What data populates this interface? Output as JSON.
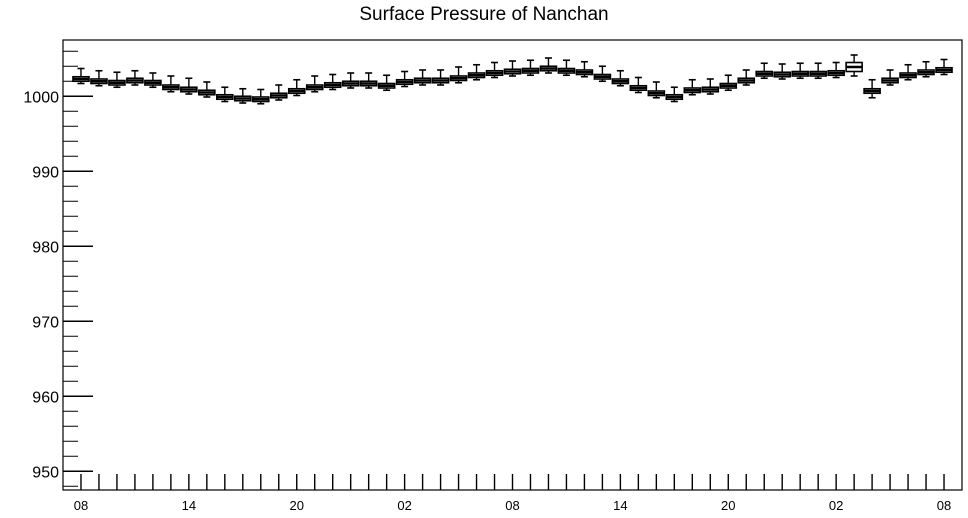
{
  "chart_data": {
    "type": "box",
    "title": "Surface Pressure of Nanchan",
    "xlabel": "",
    "ylabel": "",
    "ylim": [
      947.5,
      1007.5
    ],
    "y_ticks": [
      950,
      960,
      970,
      980,
      990,
      1000
    ],
    "x_tick_labels": [
      "08",
      "14",
      "20",
      "02",
      "08",
      "14",
      "20",
      "02",
      "08"
    ],
    "x_tick_label_hours": [
      8,
      14,
      20,
      26,
      32,
      38,
      44,
      50,
      56
    ],
    "x_range_hours": [
      7,
      57
    ],
    "hours": [
      8,
      9,
      10,
      11,
      12,
      13,
      14,
      15,
      16,
      17,
      18,
      19,
      20,
      21,
      22,
      23,
      24,
      25,
      26,
      27,
      28,
      29,
      30,
      31,
      32,
      33,
      34,
      35,
      36,
      37,
      38,
      39,
      40,
      41,
      42,
      43,
      44,
      45,
      46,
      47,
      48,
      49,
      50,
      51,
      52,
      53,
      54,
      55,
      56
    ],
    "median": [
      1002.3,
      1002.0,
      1001.8,
      1002.1,
      1001.8,
      1001.2,
      1000.9,
      1000.5,
      999.9,
      999.7,
      999.6,
      1000.1,
      1000.7,
      1001.2,
      1001.5,
      1001.7,
      1001.7,
      1001.4,
      1001.9,
      1002.1,
      1002.1,
      1002.4,
      1002.8,
      1003.1,
      1003.3,
      1003.4,
      1003.7,
      1003.4,
      1003.2,
      1002.6,
      1002.0,
      1001.1,
      1000.4,
      999.9,
      1000.8,
      1000.9,
      1001.4,
      1002.1,
      1003.0,
      1002.9,
      1003.0,
      1003.0,
      1003.1,
      1003.9,
      1000.7,
      1002.1,
      1002.8,
      1003.2,
      1003.5
    ],
    "whisker_up": [
      1.4,
      1.4,
      1.4,
      1.3,
      1.3,
      1.5,
      1.5,
      1.4,
      1.3,
      1.3,
      1.3,
      1.4,
      1.5,
      1.5,
      1.4,
      1.4,
      1.4,
      1.4,
      1.4,
      1.4,
      1.4,
      1.5,
      1.4,
      1.4,
      1.4,
      1.4,
      1.4,
      1.4,
      1.4,
      1.4,
      1.4,
      1.4,
      1.5,
      1.3,
      1.4,
      1.4,
      1.4,
      1.4,
      1.4,
      1.4,
      1.4,
      1.4,
      1.4,
      1.6,
      1.5,
      1.4,
      1.4,
      1.4,
      1.4
    ],
    "whisker_down": [
      0.6,
      0.6,
      0.6,
      0.6,
      0.6,
      0.6,
      0.6,
      0.6,
      0.6,
      0.6,
      0.6,
      0.6,
      0.6,
      0.6,
      0.6,
      0.6,
      0.6,
      0.6,
      0.6,
      0.6,
      0.6,
      0.6,
      0.6,
      0.6,
      0.6,
      0.6,
      0.6,
      0.6,
      0.6,
      0.6,
      0.6,
      0.6,
      0.6,
      0.6,
      0.6,
      0.6,
      0.6,
      0.6,
      0.6,
      0.6,
      0.6,
      0.6,
      0.6,
      1.2,
      0.9,
      0.6,
      0.6,
      0.6,
      0.6
    ],
    "box_half_height": [
      0.3,
      0.3,
      0.3,
      0.3,
      0.3,
      0.3,
      0.3,
      0.3,
      0.3,
      0.3,
      0.3,
      0.3,
      0.3,
      0.3,
      0.3,
      0.3,
      0.3,
      0.3,
      0.3,
      0.3,
      0.3,
      0.3,
      0.3,
      0.3,
      0.3,
      0.3,
      0.3,
      0.3,
      0.3,
      0.3,
      0.3,
      0.3,
      0.3,
      0.3,
      0.3,
      0.3,
      0.3,
      0.3,
      0.3,
      0.3,
      0.3,
      0.3,
      0.3,
      0.6,
      0.3,
      0.3,
      0.3,
      0.3,
      0.3
    ],
    "grid": false,
    "legend": "none"
  }
}
